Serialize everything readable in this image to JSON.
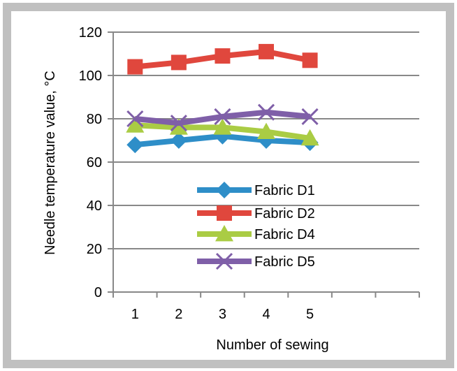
{
  "chart_data": {
    "type": "line",
    "title": "",
    "xlabel": "Number of sewing",
    "ylabel": "Needle temperature value, °C",
    "x": [
      1,
      2,
      3,
      4,
      5
    ],
    "x_tick_labels": [
      "1",
      "2",
      "3",
      "4",
      "5"
    ],
    "y_tick_labels": [
      "0",
      "20",
      "40",
      "60",
      "80",
      "100",
      "120"
    ],
    "xlim": [
      0.5,
      7.5
    ],
    "ylim": [
      0,
      120
    ],
    "grid": "horizontal",
    "legend_position": "center, inside plot",
    "series": [
      {
        "name": "Fabric D1",
        "values": [
          68,
          70,
          72,
          70,
          69
        ],
        "color": "#2e8ec8",
        "marker": "diamond"
      },
      {
        "name": "Fabric D2",
        "values": [
          104,
          106,
          109,
          111,
          107
        ],
        "color": "#e0473d",
        "marker": "square"
      },
      {
        "name": "Fabric D4",
        "values": [
          77,
          76,
          76,
          74,
          71
        ],
        "color": "#aacc44",
        "marker": "triangle"
      },
      {
        "name": "Fabric D5",
        "values": [
          80,
          78,
          81,
          83,
          81
        ],
        "color": "#7f5fa8",
        "marker": "x"
      }
    ],
    "frame_color": "#c0c0c0",
    "gridline_color": "#888888"
  }
}
